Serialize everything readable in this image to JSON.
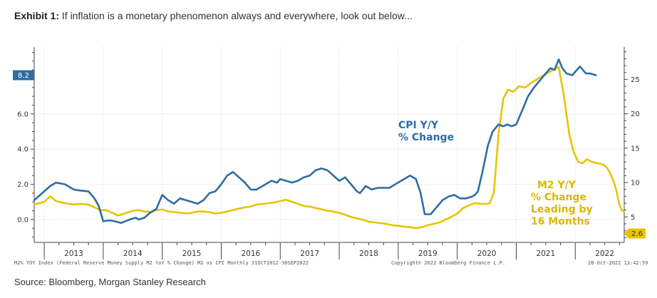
{
  "header": {
    "title_bold": "Exhibit 1:",
    "title_rest": " If inflation is a monetary phenomenon always and everywhere, look out below..."
  },
  "footer": {
    "source": "Source: Bloomberg, Morgan Stanley Research",
    "left_note": "M2% YOY Index (Federal Reserve Money Supply M2 YoY % Change) M2 vs CPI  Monthly 31OCT2012-30SEP2022",
    "center_note": "Copyright© 2022 Bloomberg Finance L.P.",
    "right_note": "28-Oct-2022 13:42:59"
  },
  "chart_data": {
    "type": "line",
    "x_axis": {
      "range": [
        2012.83,
        2022.83
      ],
      "year_labels": [
        "2013",
        "2014",
        "2015",
        "2016",
        "2017",
        "2018",
        "2019",
        "2020",
        "2021",
        "2022"
      ]
    },
    "left_axis": {
      "range": [
        -1.3,
        9.8
      ],
      "ticks": [
        "0.0",
        "2.0",
        "4.0",
        "6.0"
      ]
    },
    "right_axis": {
      "range": [
        1.3,
        29.7
      ],
      "ticks": [
        "5",
        "10",
        "15",
        "20",
        "25"
      ]
    },
    "annotations": {
      "cpi": [
        "CPI Y/Y",
        "% Change"
      ],
      "m2": [
        "M2 Y/Y",
        "% Change",
        "Leading by",
        "16 Months"
      ]
    },
    "last_value_labels": {
      "cpi": "8.2",
      "m2": "2.6"
    },
    "colors": {
      "cpi": "#2e6da4",
      "m2": "#e8c400",
      "badge_cpi": "#2e6da4"
    },
    "series": [
      {
        "name": "CPI Y/Y % Change",
        "axis": "left",
        "color": "#2e6da4",
        "points": [
          [
            2012.83,
            1.1
          ],
          [
            2013.0,
            1.6
          ],
          [
            2013.1,
            1.9
          ],
          [
            2013.2,
            2.1
          ],
          [
            2013.35,
            2.0
          ],
          [
            2013.5,
            1.7
          ],
          [
            2013.6,
            1.65
          ],
          [
            2013.75,
            1.6
          ],
          [
            2013.85,
            1.2
          ],
          [
            2013.92,
            0.8
          ],
          [
            2014.0,
            -0.1
          ],
          [
            2014.1,
            -0.05
          ],
          [
            2014.2,
            -0.1
          ],
          [
            2014.3,
            -0.2
          ],
          [
            2014.45,
            0.0
          ],
          [
            2014.55,
            0.1
          ],
          [
            2014.6,
            0.0
          ],
          [
            2014.7,
            0.1
          ],
          [
            2014.8,
            0.4
          ],
          [
            2014.9,
            0.6
          ],
          [
            2015.0,
            1.4
          ],
          [
            2015.1,
            1.1
          ],
          [
            2015.2,
            0.9
          ],
          [
            2015.3,
            1.2
          ],
          [
            2015.4,
            1.1
          ],
          [
            2015.5,
            1.0
          ],
          [
            2015.6,
            0.9
          ],
          [
            2015.7,
            1.1
          ],
          [
            2015.8,
            1.5
          ],
          [
            2015.9,
            1.6
          ],
          [
            2016.0,
            2.0
          ],
          [
            2016.1,
            2.5
          ],
          [
            2016.2,
            2.7
          ],
          [
            2016.3,
            2.4
          ],
          [
            2016.4,
            2.1
          ],
          [
            2016.5,
            1.7
          ],
          [
            2016.6,
            1.7
          ],
          [
            2016.7,
            1.9
          ],
          [
            2016.85,
            2.2
          ],
          [
            2016.95,
            2.1
          ],
          [
            2017.0,
            2.3
          ],
          [
            2017.1,
            2.2
          ],
          [
            2017.2,
            2.1
          ],
          [
            2017.3,
            2.2
          ],
          [
            2017.4,
            2.4
          ],
          [
            2017.5,
            2.5
          ],
          [
            2017.6,
            2.8
          ],
          [
            2017.7,
            2.9
          ],
          [
            2017.8,
            2.8
          ],
          [
            2017.9,
            2.5
          ],
          [
            2018.0,
            2.2
          ],
          [
            2018.1,
            2.4
          ],
          [
            2018.2,
            2.0
          ],
          [
            2018.3,
            1.6
          ],
          [
            2018.35,
            1.5
          ],
          [
            2018.45,
            1.9
          ],
          [
            2018.55,
            1.7
          ],
          [
            2018.65,
            1.8
          ],
          [
            2018.75,
            1.8
          ],
          [
            2018.85,
            1.8
          ],
          [
            2018.95,
            2.0
          ],
          [
            2019.1,
            2.3
          ],
          [
            2019.2,
            2.5
          ],
          [
            2019.3,
            2.3
          ],
          [
            2019.38,
            1.5
          ],
          [
            2019.45,
            0.3
          ],
          [
            2019.55,
            0.3
          ],
          [
            2019.65,
            0.7
          ],
          [
            2019.75,
            1.1
          ],
          [
            2019.85,
            1.3
          ],
          [
            2019.95,
            1.4
          ],
          [
            2020.05,
            1.2
          ],
          [
            2020.15,
            1.2
          ],
          [
            2020.25,
            1.3
          ],
          [
            2020.3,
            1.4
          ],
          [
            2020.35,
            1.6
          ],
          [
            2020.42,
            2.6
          ],
          [
            2020.52,
            4.2
          ],
          [
            2020.6,
            5.0
          ],
          [
            2020.7,
            5.4
          ],
          [
            2020.78,
            5.3
          ],
          [
            2020.85,
            5.4
          ],
          [
            2020.92,
            5.3
          ],
          [
            2021.0,
            5.4
          ],
          [
            2021.1,
            6.2
          ],
          [
            2021.2,
            7.0
          ],
          [
            2021.3,
            7.5
          ],
          [
            2021.4,
            7.9
          ],
          [
            2021.5,
            8.3
          ],
          [
            2021.58,
            8.6
          ],
          [
            2021.65,
            8.5
          ],
          [
            2021.72,
            9.1
          ],
          [
            2021.78,
            8.6
          ],
          [
            2021.85,
            8.3
          ],
          [
            2021.95,
            8.2
          ],
          [
            2022.0,
            8.4
          ],
          [
            2022.08,
            8.7
          ],
          [
            2022.18,
            8.3
          ],
          [
            2022.25,
            8.3
          ],
          [
            2022.35,
            8.2
          ]
        ]
      },
      {
        "name": "M2 Y/Y % Change Leading by 16 Months",
        "axis": "right",
        "color": "#e8c400",
        "points": [
          [
            2012.83,
            6.8
          ],
          [
            2013.0,
            7.2
          ],
          [
            2013.1,
            8.0
          ],
          [
            2013.2,
            7.3
          ],
          [
            2013.35,
            7.0
          ],
          [
            2013.5,
            6.8
          ],
          [
            2013.6,
            6.9
          ],
          [
            2013.75,
            6.8
          ],
          [
            2013.85,
            6.4
          ],
          [
            2013.95,
            6.0
          ],
          [
            2014.05,
            6.0
          ],
          [
            2014.15,
            5.6
          ],
          [
            2014.25,
            5.2
          ],
          [
            2014.4,
            5.6
          ],
          [
            2014.5,
            5.9
          ],
          [
            2014.6,
            6.0
          ],
          [
            2014.7,
            5.8
          ],
          [
            2014.8,
            5.7
          ],
          [
            2014.9,
            6.0
          ],
          [
            2015.0,
            6.1
          ],
          [
            2015.1,
            5.8
          ],
          [
            2015.2,
            5.7
          ],
          [
            2015.3,
            5.6
          ],
          [
            2015.45,
            5.5
          ],
          [
            2015.6,
            5.8
          ],
          [
            2015.7,
            5.8
          ],
          [
            2015.8,
            5.7
          ],
          [
            2015.9,
            5.5
          ],
          [
            2016.0,
            5.6
          ],
          [
            2016.1,
            5.8
          ],
          [
            2016.2,
            6.0
          ],
          [
            2016.3,
            6.2
          ],
          [
            2016.4,
            6.4
          ],
          [
            2016.5,
            6.5
          ],
          [
            2016.6,
            6.8
          ],
          [
            2016.7,
            6.9
          ],
          [
            2016.8,
            7.0
          ],
          [
            2016.9,
            7.1
          ],
          [
            2017.0,
            7.3
          ],
          [
            2017.1,
            7.5
          ],
          [
            2017.2,
            7.2
          ],
          [
            2017.3,
            6.9
          ],
          [
            2017.4,
            6.6
          ],
          [
            2017.5,
            6.5
          ],
          [
            2017.6,
            6.3
          ],
          [
            2017.7,
            6.1
          ],
          [
            2017.8,
            5.9
          ],
          [
            2017.9,
            5.8
          ],
          [
            2018.0,
            5.6
          ],
          [
            2018.1,
            5.3
          ],
          [
            2018.2,
            5.0
          ],
          [
            2018.3,
            4.8
          ],
          [
            2018.4,
            4.6
          ],
          [
            2018.5,
            4.3
          ],
          [
            2018.6,
            4.2
          ],
          [
            2018.7,
            4.1
          ],
          [
            2018.8,
            4.0
          ],
          [
            2018.9,
            3.8
          ],
          [
            2019.0,
            3.7
          ],
          [
            2019.1,
            3.6
          ],
          [
            2019.2,
            3.5
          ],
          [
            2019.3,
            3.4
          ],
          [
            2019.4,
            3.5
          ],
          [
            2019.5,
            3.8
          ],
          [
            2019.6,
            4.0
          ],
          [
            2019.7,
            4.2
          ],
          [
            2019.8,
            4.6
          ],
          [
            2019.9,
            5.0
          ],
          [
            2020.0,
            5.5
          ],
          [
            2020.1,
            6.3
          ],
          [
            2020.2,
            6.7
          ],
          [
            2020.3,
            7.0
          ],
          [
            2020.4,
            6.9
          ],
          [
            2020.5,
            6.9
          ],
          [
            2020.55,
            7.0
          ],
          [
            2020.62,
            8.5
          ],
          [
            2020.7,
            17.0
          ],
          [
            2020.78,
            22.2
          ],
          [
            2020.86,
            23.5
          ],
          [
            2020.95,
            23.2
          ],
          [
            2021.05,
            24.0
          ],
          [
            2021.15,
            23.8
          ],
          [
            2021.25,
            24.5
          ],
          [
            2021.35,
            25.0
          ],
          [
            2021.45,
            25.5
          ],
          [
            2021.55,
            26.0
          ],
          [
            2021.65,
            26.5
          ],
          [
            2021.72,
            26.8
          ],
          [
            2021.8,
            23.0
          ],
          [
            2021.9,
            17.0
          ],
          [
            2021.97,
            14.5
          ],
          [
            2022.05,
            13.0
          ],
          [
            2022.12,
            12.8
          ],
          [
            2022.2,
            13.4
          ],
          [
            2022.28,
            13.0
          ],
          [
            2022.38,
            12.8
          ],
          [
            2022.48,
            12.6
          ],
          [
            2022.55,
            12.0
          ],
          [
            2022.6,
            11.2
          ],
          [
            2022.65,
            10.2
          ],
          [
            2022.7,
            8.8
          ],
          [
            2022.73,
            7.5
          ],
          [
            2022.76,
            6.5
          ],
          [
            2022.79,
            6.0
          ],
          [
            2022.82,
            5.8
          ]
        ]
      }
    ]
  }
}
